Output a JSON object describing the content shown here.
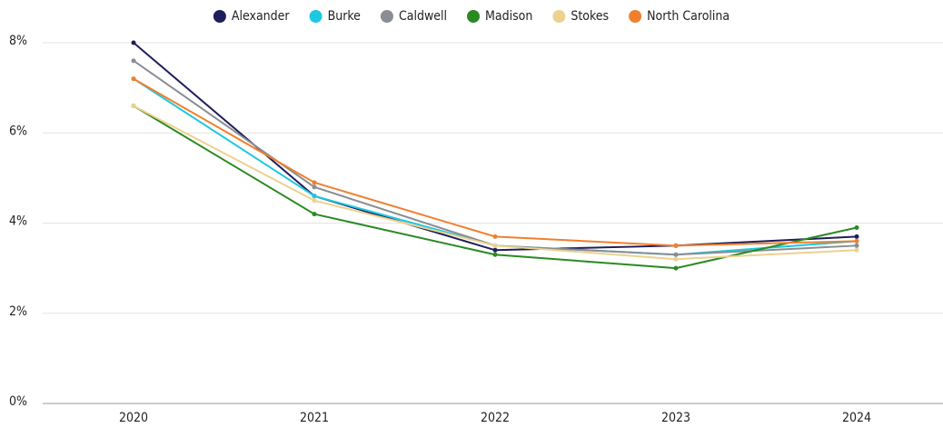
{
  "chart_data": {
    "type": "line",
    "x": [
      "2020",
      "2021",
      "2022",
      "2023",
      "2024"
    ],
    "series": [
      {
        "name": "Alexander",
        "color": "#1f1d5a",
        "values": [
          8.0,
          4.6,
          3.4,
          3.5,
          3.7
        ]
      },
      {
        "name": "Burke",
        "color": "#1ec8e0",
        "values": [
          7.2,
          4.6,
          3.5,
          3.3,
          3.6
        ]
      },
      {
        "name": "Caldwell",
        "color": "#8a8d91",
        "values": [
          7.6,
          4.8,
          3.5,
          3.3,
          3.5
        ]
      },
      {
        "name": "Madison",
        "color": "#2a8a22",
        "values": [
          6.6,
          4.2,
          3.3,
          3.0,
          3.9
        ]
      },
      {
        "name": "Stokes",
        "color": "#ecd28f",
        "values": [
          6.6,
          4.5,
          3.5,
          3.2,
          3.4
        ]
      },
      {
        "name": "North Carolina",
        "color": "#f07f2e",
        "values": [
          7.2,
          4.9,
          3.7,
          3.5,
          3.6
        ]
      }
    ],
    "ylim": [
      0,
      8
    ],
    "yticks": [
      {
        "value": 0,
        "label": "0%"
      },
      {
        "value": 2,
        "label": "2%"
      },
      {
        "value": 4,
        "label": "4%"
      },
      {
        "value": 6,
        "label": "6%"
      },
      {
        "value": 8,
        "label": "8%"
      }
    ],
    "grid": true,
    "legend": "top"
  }
}
